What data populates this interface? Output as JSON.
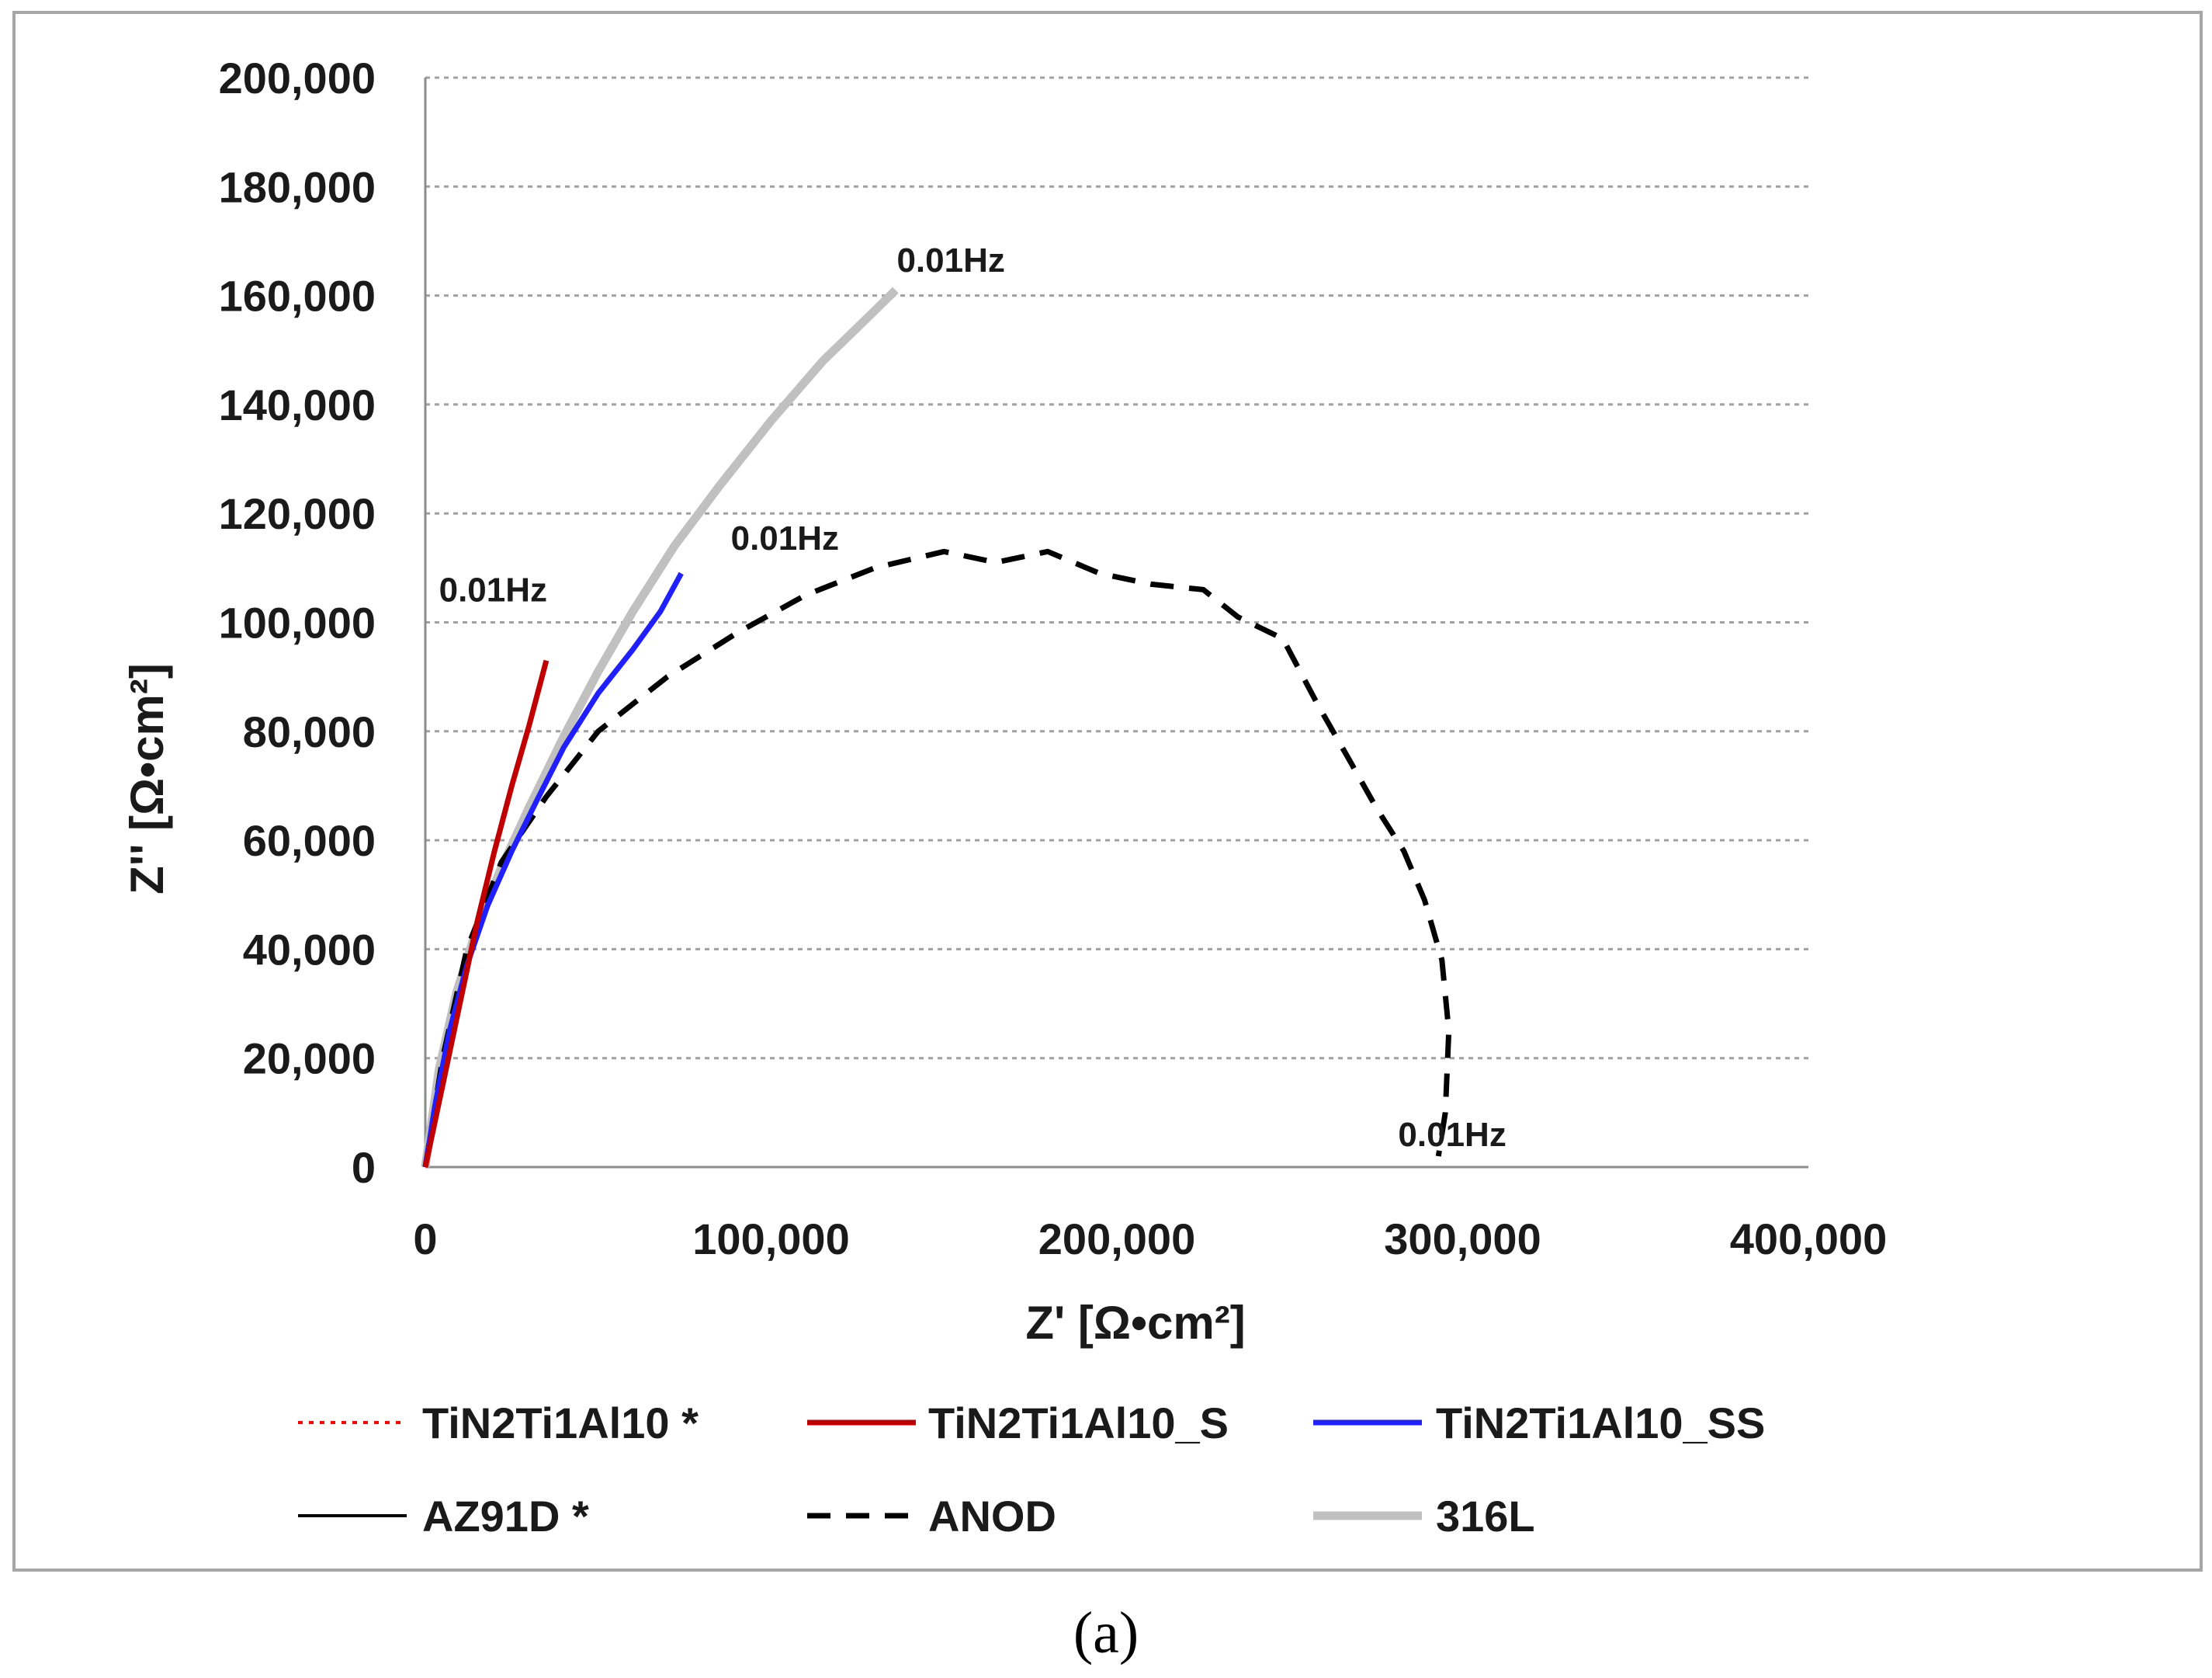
{
  "panel_label": "(a)",
  "chart_data": {
    "type": "line",
    "title": "",
    "xlabel": "Z' [Ω•cm²]",
    "ylabel": "Z'' [Ω•cm²]",
    "xlim": [
      0,
      400000
    ],
    "ylim": [
      0,
      200000
    ],
    "x_ticks": [
      0,
      100000,
      200000,
      300000,
      400000
    ],
    "x_tick_labels": [
      "0",
      "100,000",
      "200,000",
      "300,000",
      "400,000"
    ],
    "y_ticks": [
      0,
      20000,
      40000,
      60000,
      80000,
      100000,
      120000,
      140000,
      160000,
      180000,
      200000
    ],
    "y_tick_labels": [
      "0",
      "20,000",
      "40,000",
      "60,000",
      "80,000",
      "100,000",
      "120,000",
      "140,000",
      "160,000",
      "180,000",
      "200,000"
    ],
    "grid": "horizontal dotted",
    "legend_position": "bottom",
    "series": [
      {
        "name": "TiN2Ti1Al10 *",
        "color": "#ff0000",
        "dash": "dotted",
        "width": 4,
        "points": []
      },
      {
        "name": "TiN2Ti1Al10_S",
        "color": "#c00000",
        "dash": "solid",
        "width": 7,
        "points": [
          [
            0,
            0
          ],
          [
            5000,
            15000
          ],
          [
            10000,
            30000
          ],
          [
            15000,
            45000
          ],
          [
            20000,
            58000
          ],
          [
            25000,
            70000
          ],
          [
            30000,
            81000
          ],
          [
            35000,
            93000
          ]
        ]
      },
      {
        "name": "TiN2Ti1Al10_SS",
        "color": "#1f1fff",
        "dash": "solid",
        "width": 7,
        "points": [
          [
            0,
            0
          ],
          [
            3000,
            12000
          ],
          [
            7000,
            25000
          ],
          [
            12000,
            37000
          ],
          [
            18000,
            48000
          ],
          [
            25000,
            58000
          ],
          [
            32000,
            67000
          ],
          [
            40000,
            77000
          ],
          [
            50000,
            87000
          ],
          [
            60000,
            95000
          ],
          [
            68000,
            102000
          ],
          [
            74000,
            109000
          ]
        ]
      },
      {
        "name": "AZ91D *",
        "color": "#000000",
        "dash": "solid",
        "width": 4,
        "points": []
      },
      {
        "name": "ANOD",
        "color": "#000000",
        "dash": "dashed",
        "width": 7,
        "points": [
          [
            0,
            0
          ],
          [
            5000,
            20000
          ],
          [
            12000,
            40000
          ],
          [
            22000,
            56000
          ],
          [
            35000,
            68000
          ],
          [
            50000,
            80000
          ],
          [
            70000,
            90000
          ],
          [
            90000,
            98000
          ],
          [
            110000,
            105000
          ],
          [
            130000,
            110000
          ],
          [
            150000,
            113000
          ],
          [
            165000,
            111000
          ],
          [
            180000,
            113000
          ],
          [
            195000,
            109000
          ],
          [
            210000,
            107000
          ],
          [
            225000,
            106000
          ],
          [
            235000,
            101000
          ],
          [
            248000,
            97000
          ],
          [
            258000,
            85000
          ],
          [
            267000,
            75000
          ],
          [
            275000,
            66000
          ],
          [
            283000,
            58000
          ],
          [
            289000,
            49000
          ],
          [
            294000,
            38000
          ],
          [
            296000,
            25000
          ],
          [
            295000,
            10000
          ],
          [
            293000,
            2000
          ]
        ]
      },
      {
        "name": "316L",
        "color": "#c0c0c0",
        "dash": "solid",
        "width": 11,
        "points": [
          [
            0,
            0
          ],
          [
            4000,
            18000
          ],
          [
            9000,
            32000
          ],
          [
            15000,
            44000
          ],
          [
            22000,
            55000
          ],
          [
            30000,
            66000
          ],
          [
            40000,
            79000
          ],
          [
            50000,
            91000
          ],
          [
            60000,
            102000
          ],
          [
            72000,
            114000
          ],
          [
            85000,
            125000
          ],
          [
            100000,
            137000
          ],
          [
            115000,
            148000
          ],
          [
            128000,
            156000
          ],
          [
            136000,
            161000
          ]
        ]
      }
    ],
    "annotations": [
      {
        "text": "0.01Hz",
        "x": 152000,
        "y": 166500
      },
      {
        "text": "0.01Hz",
        "x": 104000,
        "y": 115500
      },
      {
        "text": "0.01Hz",
        "x": 104000,
        "y": 115500
      },
      {
        "text": "0.01Hz",
        "x": 19600,
        "y": 106000
      },
      {
        "text": "0.01Hz",
        "x": 297000,
        "y": 6000
      }
    ]
  }
}
